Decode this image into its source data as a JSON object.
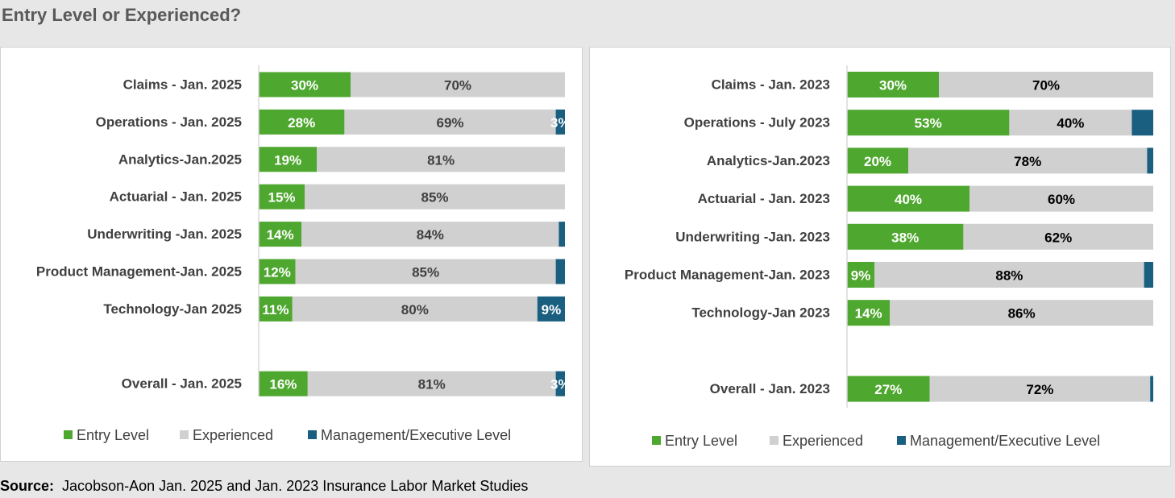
{
  "title": "Entry Level or Experienced?",
  "source": {
    "label": "Source:",
    "text": "Jacobson-Aon Jan. 2025 and Jan. 2023 Insurance Labor Market Studies"
  },
  "chart_data": [
    {
      "type": "bar",
      "orientation": "horizontal",
      "stacked": true,
      "xlim": [
        0,
        100
      ],
      "legend": "bottom",
      "categories": [
        "Claims - Jan. 2025",
        "Operations - Jan. 2025",
        "Analytics-Jan.2025",
        "Actuarial - Jan. 2025",
        "Underwriting -Jan. 2025",
        "Product Management-Jan. 2025",
        "Technology-Jan 2025",
        null,
        "Overall - Jan. 2025"
      ],
      "series": [
        {
          "name": "Entry Level",
          "color": "#4ea72e",
          "values": [
            30,
            28,
            19,
            15,
            14,
            12,
            11,
            null,
            16
          ],
          "value_labels": [
            "30%",
            "28%",
            "19%",
            "15%",
            "14%",
            "12%",
            "11%",
            null,
            "16%"
          ]
        },
        {
          "name": "Experienced",
          "color": "#d0d0d0",
          "values": [
            70,
            69,
            81,
            85,
            84,
            85,
            80,
            null,
            81
          ],
          "value_labels": [
            "70%",
            "69%",
            "81%",
            "85%",
            "84%",
            "85%",
            "80%",
            null,
            "81%"
          ]
        },
        {
          "name": "Management/Executive Level",
          "color": "#1a5e80",
          "values": [
            null,
            3,
            null,
            null,
            2,
            3,
            9,
            null,
            3
          ],
          "value_labels": [
            null,
            "3%",
            null,
            null,
            null,
            null,
            "9%",
            null,
            "3%"
          ]
        }
      ]
    },
    {
      "type": "bar",
      "orientation": "horizontal",
      "stacked": true,
      "xlim": [
        0,
        100
      ],
      "legend": "bottom",
      "categories": [
        "Claims - Jan. 2023",
        "Operations - July 2023",
        "Analytics-Jan.2023",
        "Actuarial - Jan. 2023",
        "Underwriting -Jan. 2023",
        "Product Management-Jan. 2023",
        "Technology-Jan 2023",
        null,
        "Overall - Jan. 2023"
      ],
      "series": [
        {
          "name": "Entry Level",
          "color": "#4ea72e",
          "values": [
            30,
            53,
            20,
            40,
            38,
            9,
            14,
            null,
            27
          ],
          "value_labels": [
            "30%",
            "53%",
            "20%",
            "40%",
            "38%",
            "9%",
            "14%",
            null,
            "27%"
          ]
        },
        {
          "name": "Experienced",
          "color": "#d0d0d0",
          "values": [
            70,
            40,
            78,
            60,
            62,
            88,
            86,
            null,
            72
          ],
          "value_labels": [
            "70%",
            "40%",
            "78%",
            "60%",
            "62%",
            "88%",
            "86%",
            null,
            "72%"
          ]
        },
        {
          "name": "Management/Executive Level",
          "color": "#1a5e80",
          "values": [
            null,
            7,
            2,
            null,
            null,
            3,
            null,
            null,
            1
          ],
          "value_labels": [
            null,
            null,
            null,
            null,
            null,
            null,
            null,
            null,
            null
          ]
        }
      ]
    }
  ]
}
